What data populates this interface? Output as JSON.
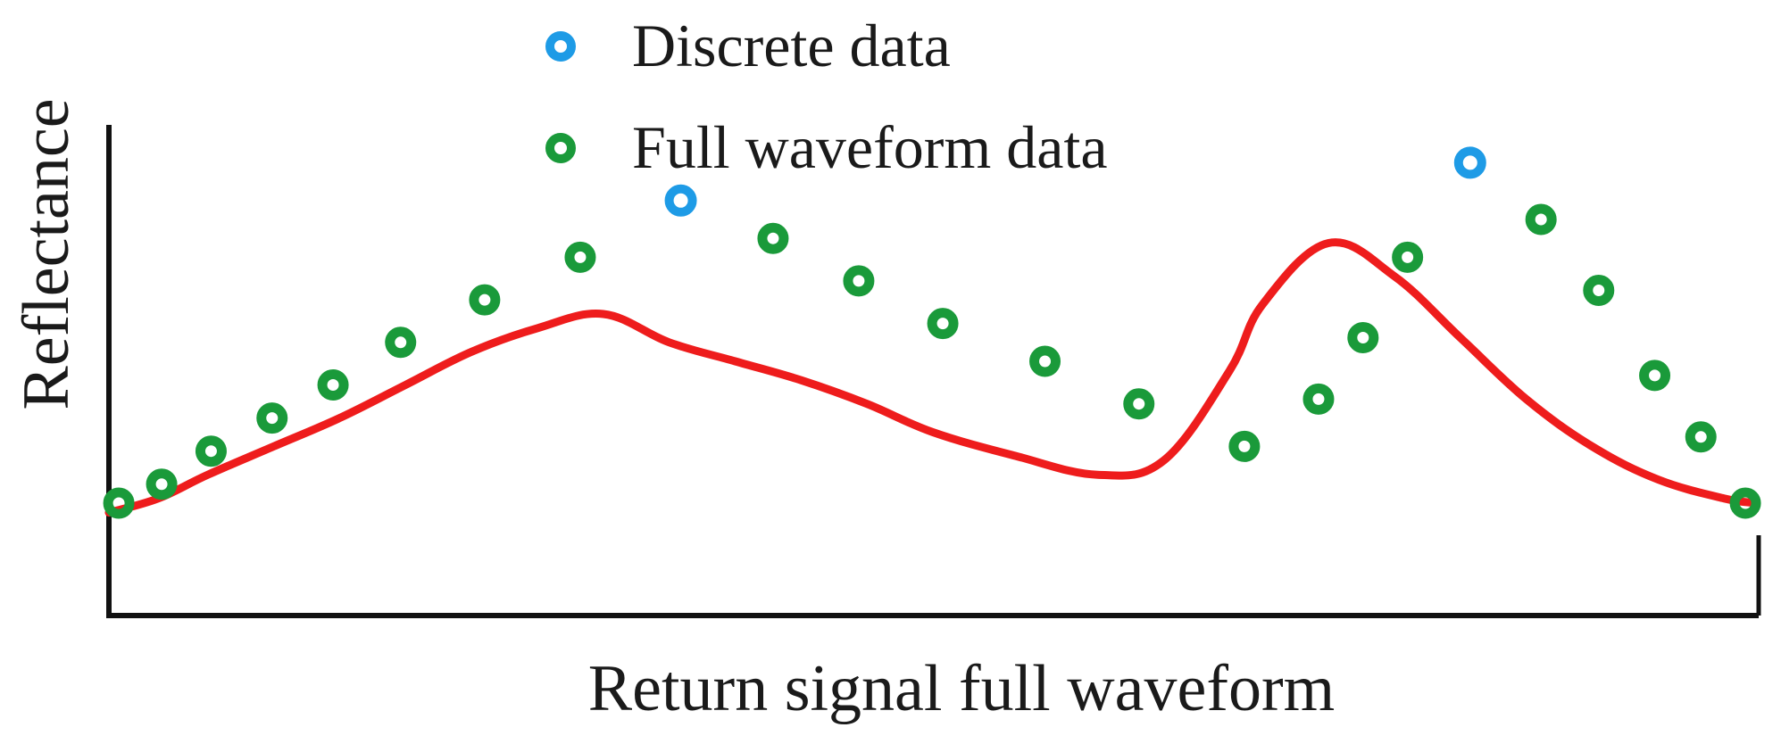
{
  "colors": {
    "curve": "#ee1c1c",
    "discrete": "#1e9be6",
    "full_waveform": "#1a9a3a",
    "axis": "#111111",
    "text": "#1a1a1a"
  },
  "legend": {
    "placement": "top-center",
    "items": [
      {
        "label": "Discrete data",
        "color": "#1e9be6",
        "marker": "ring"
      },
      {
        "label": "Full waveform data",
        "color": "#1a9a3a",
        "marker": "ring"
      }
    ]
  },
  "chart_data": {
    "type": "scatter",
    "title": "",
    "xlabel": "Return signal full waveform",
    "ylabel": "Reflectance",
    "xlim": [
      0,
      100
    ],
    "ylim": [
      0,
      100
    ],
    "grid": false,
    "ticks": false,
    "curve": {
      "name": "",
      "color": "#ee1c1c",
      "x": [
        0,
        3,
        6,
        10,
        14,
        18,
        22,
        26,
        30,
        34,
        38,
        42,
        46,
        50,
        55,
        60,
        64,
        68,
        70,
        74,
        78,
        82,
        86,
        90,
        94,
        98,
        100
      ],
      "y": [
        18,
        21,
        26,
        32,
        38,
        45,
        52,
        57,
        60,
        54,
        50,
        46,
        41,
        35,
        30,
        26,
        29,
        48,
        62,
        75,
        68,
        55,
        42,
        32,
        25,
        21,
        20
      ]
    },
    "series": [
      {
        "name": "Discrete data",
        "color": "#1e9be6",
        "x": [
          34.7,
          82.6
        ],
        "y": [
          84,
          92
        ]
      },
      {
        "name": "Full waveform data",
        "color": "#1a9a3a",
        "x": [
          0.6,
          3.2,
          6.2,
          9.9,
          13.6,
          17.7,
          22.8,
          28.6,
          40.3,
          45.5,
          50.6,
          56.8,
          62.5,
          68.9,
          73.4,
          76.1,
          78.8,
          86.9,
          90.4,
          93.8,
          96.6,
          99.3
        ],
        "y": [
          20,
          24,
          31,
          38,
          45,
          54,
          63,
          72,
          76,
          67,
          58,
          50,
          41,
          32,
          42,
          55,
          72,
          80,
          65,
          47,
          34,
          20
        ]
      }
    ]
  }
}
